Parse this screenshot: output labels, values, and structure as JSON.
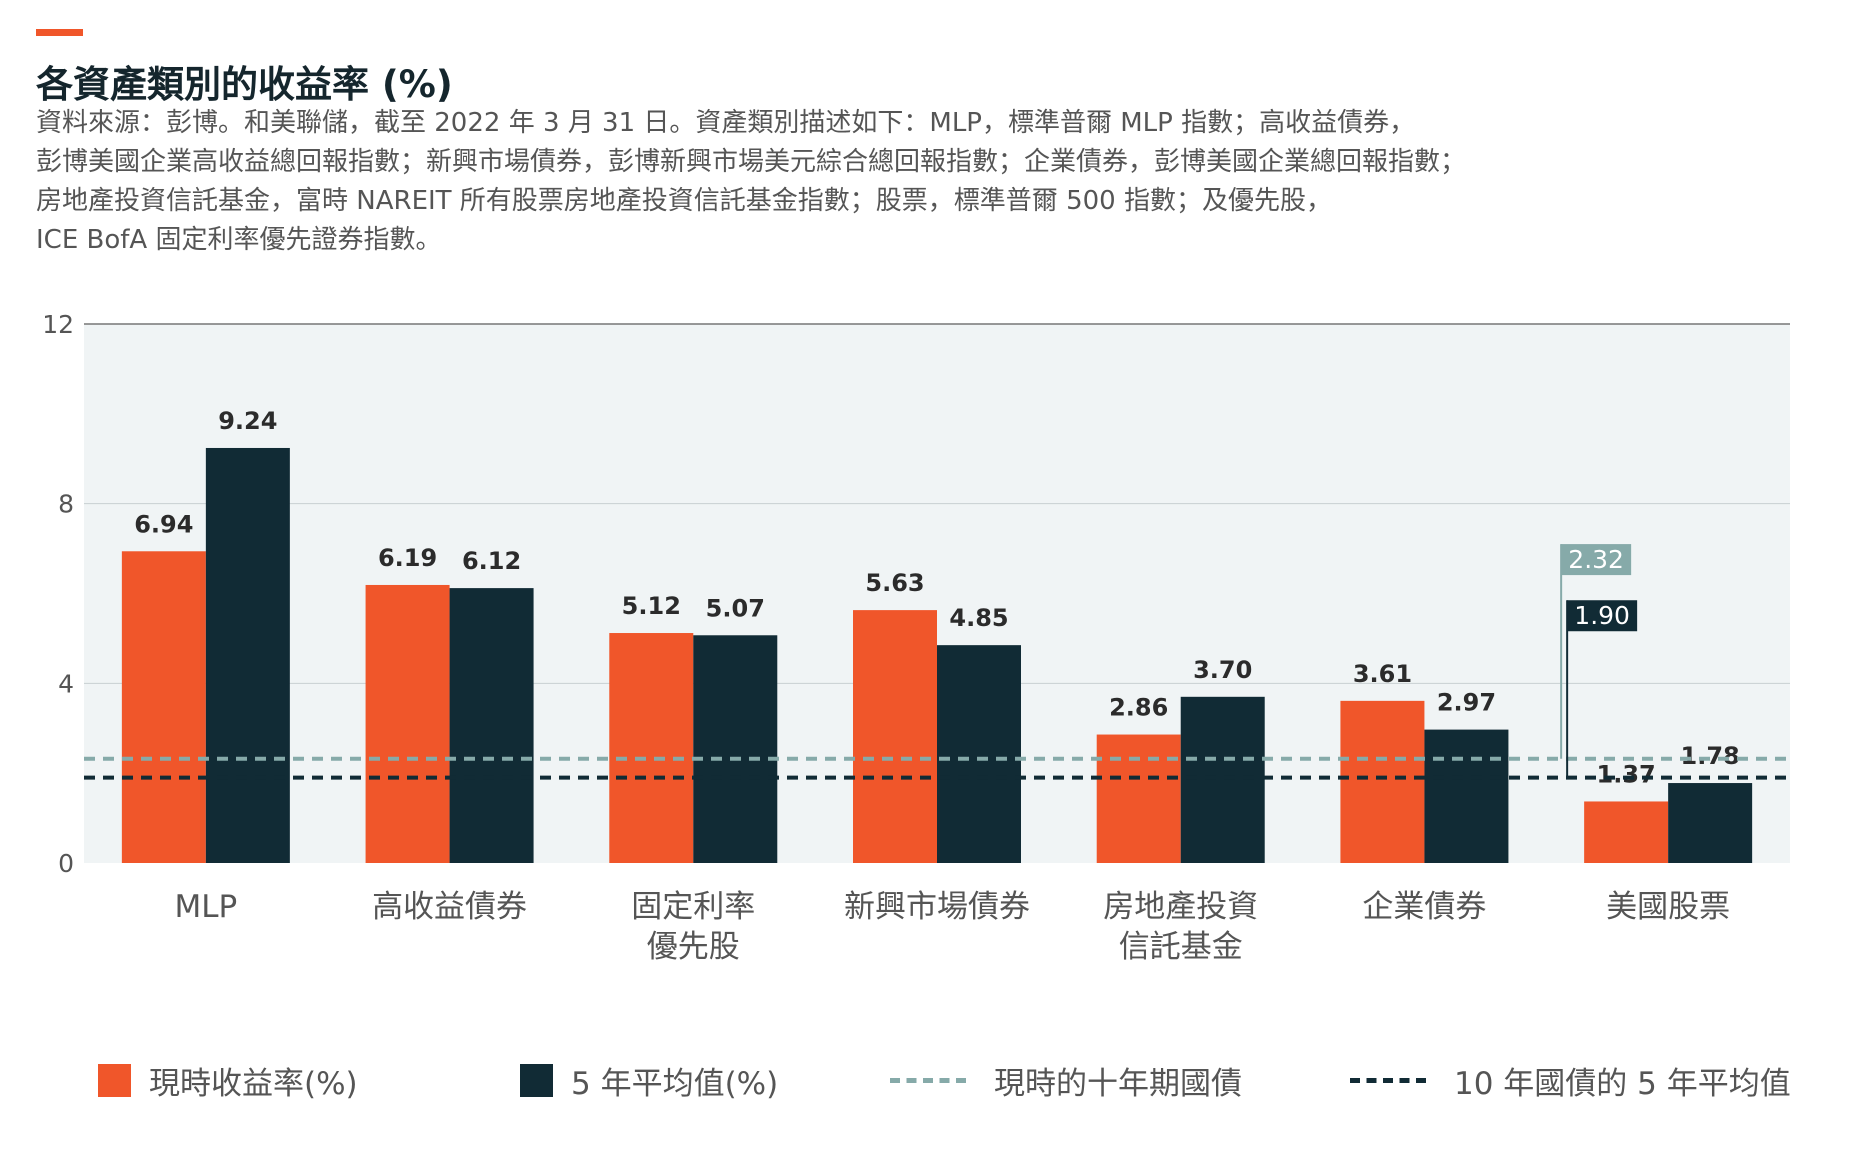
{
  "header": {
    "title": "各資產類別的收益率 (%)",
    "source_lines": [
      "資料來源：彭博。和美聯儲，截至 2022 年 3 月 31 日。資產類別描述如下：MLP，標準普爾 MLP 指數；高收益債券，",
      "彭博美國企業高收益總回報指數；新興市場債券，彭博新興市場美元綜合總回報指數；企業債券，彭博美國企業總回報指數；",
      "房地產投資信託基金，富時 NAREIT 所有股票房地產投資信託基金指數；股票，標準普爾 500 指數；及優先股，",
      "ICE BofA 固定利率優先證券指數。"
    ]
  },
  "colors": {
    "accent": "#f0562a",
    "current_yield": "#f0562a",
    "five_year_avg": "#112b35",
    "current_10y_line": "#86aaa9",
    "avg_10y_line": "#112b35",
    "plot_bg": "#f0f4f5"
  },
  "chart_data": {
    "type": "bar",
    "categories": [
      [
        "MLP"
      ],
      [
        "高收益債券"
      ],
      [
        "固定利率",
        "優先股"
      ],
      [
        "新興市場債券"
      ],
      [
        "房地產投資",
        "信託基金"
      ],
      [
        "企業債券"
      ],
      [
        "美國股票"
      ]
    ],
    "series": [
      {
        "name": "現時收益率(%)",
        "values": [
          6.94,
          6.19,
          5.12,
          5.63,
          2.86,
          3.61,
          1.37
        ],
        "labels": [
          "6.94",
          "6.19",
          "5.12",
          "5.63",
          "2.86",
          "3.61",
          "1.37"
        ]
      },
      {
        "name": "5 年平均值(%)",
        "values": [
          9.24,
          6.12,
          5.07,
          4.85,
          3.7,
          2.97,
          1.78
        ],
        "labels": [
          "9.24",
          "6.12",
          "5.07",
          "4.85",
          "3.70",
          "2.97",
          "1.78"
        ]
      }
    ],
    "reference_lines": [
      {
        "name": "現時的十年期國債",
        "value": 2.32,
        "label": "2.32",
        "style": "dashed"
      },
      {
        "name": "10 年國債的 5 年平均值",
        "value": 1.9,
        "label": "1.90",
        "style": "dashed"
      }
    ],
    "ylim": [
      0,
      12
    ],
    "yticks": [
      "0",
      "4",
      "8",
      "12"
    ],
    "ytick_values": [
      0,
      4,
      8,
      12
    ],
    "grid": true,
    "legend_position": "bottom"
  }
}
